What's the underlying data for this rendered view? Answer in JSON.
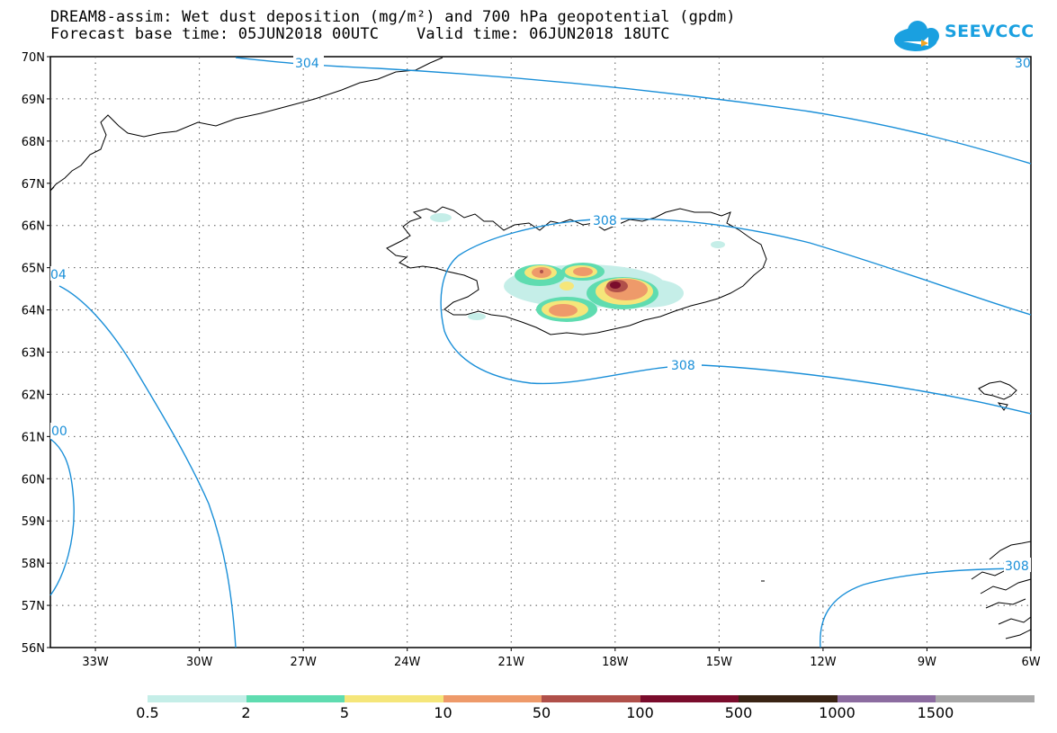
{
  "title": {
    "line1": "DREAM8-assim: Wet dust deposition (mg/m²) and 700 hPa geopotential (gpdm)",
    "line2": "Forecast base time: 05JUN2018 00UTC    Valid time: 06JUN2018 18UTC"
  },
  "logo": {
    "text": "SEEVCCC",
    "icon": "cloud-icon",
    "color": "#1aa0e0"
  },
  "map": {
    "lat_labels": [
      "70N",
      "69N",
      "68N",
      "67N",
      "66N",
      "65N",
      "64N",
      "63N",
      "62N",
      "61N",
      "60N",
      "59N",
      "58N",
      "57N",
      "56N"
    ],
    "lon_labels": [
      "33W",
      "30W",
      "27W",
      "24W",
      "21W",
      "18W",
      "15W",
      "12W",
      "9W",
      "6W"
    ],
    "lat_values": [
      70,
      69,
      68,
      67,
      66,
      65,
      64,
      63,
      62,
      61,
      60,
      59,
      58,
      57,
      56
    ],
    "lon_values": [
      -33,
      -30,
      -27,
      -24,
      -21,
      -18,
      -15,
      -12,
      -9,
      -6
    ],
    "contour_color": "#1a8fd8",
    "contour_labels": [
      "304",
      "308",
      "308",
      "04",
      "00",
      "308",
      "30"
    ]
  },
  "legend": {
    "labels": [
      "0.5",
      "2",
      "5",
      "10",
      "50",
      "100",
      "500",
      "1000",
      "1500"
    ],
    "colors": [
      "#c5eee8",
      "#5fdcb0",
      "#f5e67a",
      "#ee9a6a",
      "#b0504a",
      "#7a0c2c",
      "#3a2414",
      "#8c6ca0",
      "#a8a8a8"
    ]
  }
}
